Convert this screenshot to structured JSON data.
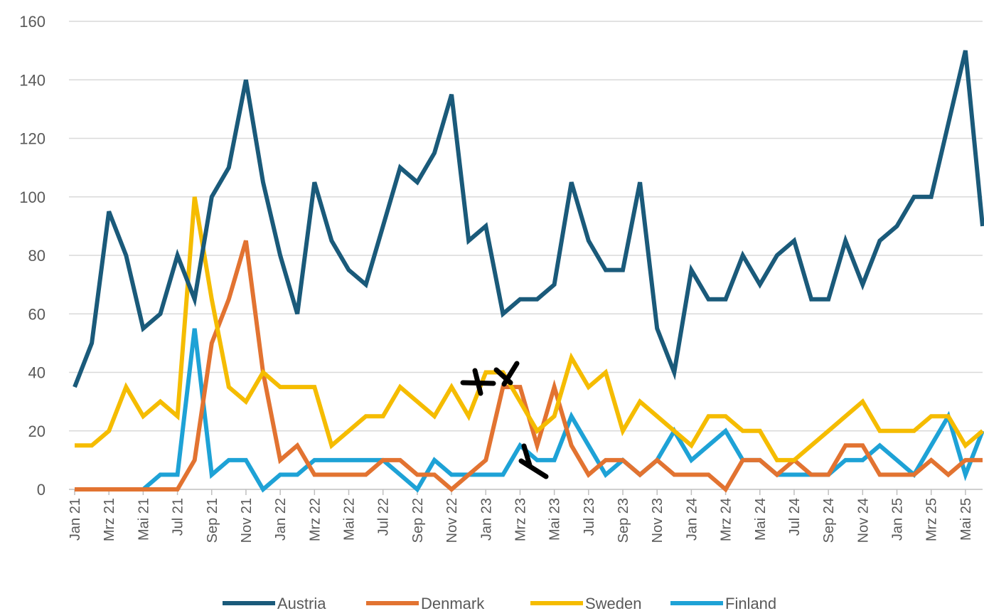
{
  "chart_data": {
    "type": "line",
    "title": "",
    "xlabel": "",
    "ylabel": "",
    "ylim": [
      0,
      160
    ],
    "yticks": [
      0,
      20,
      40,
      60,
      80,
      100,
      120,
      140,
      160
    ],
    "grid": true,
    "legend": "bottom",
    "x": [
      "Jan 21",
      "Feb 21",
      "Mrz 21",
      "Apr 21",
      "Mai 21",
      "Jun 21",
      "Jul 21",
      "Aug 21",
      "Sep 21",
      "Okt 21",
      "Nov 21",
      "Dez 21",
      "Jan 22",
      "Feb 22",
      "Mrz 22",
      "Apr 22",
      "Mai 22",
      "Jun 22",
      "Jul 22",
      "Aug 22",
      "Sep 22",
      "Okt 22",
      "Nov 22",
      "Dez 22",
      "Jan 23",
      "Feb 23",
      "Mrz 23",
      "Apr 23",
      "Mai 23",
      "Jun 23",
      "Jul 23",
      "Aug 23",
      "Sep 23",
      "Okt 23",
      "Nov 23",
      "Dez 23",
      "Jan 24",
      "Feb 24",
      "Mrz 24",
      "Apr 24",
      "Mai 24",
      "Jun 24",
      "Jul 24",
      "Aug 24",
      "Sep 24",
      "Okt 24",
      "Nov 24",
      "Dez 24",
      "Jan 25",
      "Feb 25",
      "Mrz 25",
      "Apr 25",
      "Mai 25",
      "Jun 25"
    ],
    "x_tick_labels": [
      "Jan 21",
      "Mrz 21",
      "Mai 21",
      "Jul 21",
      "Sep 21",
      "Nov 21",
      "Jan 22",
      "Mrz 22",
      "Mai 22",
      "Jul 22",
      "Sep 22",
      "Nov 22",
      "Jan 23",
      "Mrz 23",
      "Mai 23",
      "Jul 23",
      "Sep 23",
      "Nov 23",
      "Jan 24",
      "Mrz 24",
      "Mai 24",
      "Jul 24",
      "Sep 24",
      "Nov 24",
      "Jan 25",
      "Mrz 25",
      "Mai 25"
    ],
    "series": [
      {
        "name": "Austria",
        "color": "#1a5a7a",
        "values": [
          35,
          50,
          95,
          80,
          55,
          60,
          80,
          65,
          100,
          110,
          140,
          105,
          80,
          60,
          105,
          85,
          75,
          70,
          90,
          110,
          105,
          115,
          135,
          85,
          90,
          60,
          65,
          65,
          70,
          105,
          85,
          75,
          75,
          105,
          55,
          40,
          75,
          65,
          65,
          80,
          70,
          80,
          85,
          65,
          65,
          85,
          70,
          85,
          90,
          100,
          100,
          125,
          150,
          90
        ]
      },
      {
        "name": "Denmark",
        "color": "#e27331",
        "values": [
          0,
          0,
          0,
          0,
          0,
          0,
          0,
          10,
          50,
          65,
          85,
          40,
          10,
          15,
          5,
          5,
          5,
          5,
          10,
          10,
          5,
          5,
          0,
          5,
          10,
          35,
          35,
          15,
          35,
          15,
          5,
          10,
          10,
          5,
          10,
          5,
          5,
          5,
          0,
          10,
          10,
          5,
          10,
          5,
          5,
          15,
          15,
          5,
          5,
          5,
          10,
          5,
          10,
          10
        ]
      },
      {
        "name": "Sweden",
        "color": "#f5bc00",
        "values": [
          15,
          15,
          20,
          35,
          25,
          30,
          25,
          100,
          65,
          35,
          30,
          40,
          35,
          35,
          35,
          15,
          20,
          25,
          25,
          35,
          30,
          25,
          35,
          25,
          40,
          40,
          30,
          20,
          25,
          45,
          35,
          40,
          20,
          30,
          25,
          20,
          15,
          25,
          25,
          20,
          20,
          10,
          10,
          15,
          20,
          25,
          30,
          20,
          20,
          20,
          25,
          25,
          15,
          20
        ]
      },
      {
        "name": "Finland",
        "color": "#1ea2d6",
        "values": [
          0,
          0,
          0,
          0,
          0,
          5,
          5,
          55,
          5,
          10,
          10,
          0,
          5,
          5,
          10,
          10,
          10,
          10,
          10,
          5,
          0,
          10,
          5,
          5,
          5,
          5,
          15,
          10,
          10,
          25,
          15,
          5,
          10,
          5,
          10,
          20,
          10,
          15,
          20,
          10,
          10,
          5,
          5,
          5,
          5,
          10,
          10,
          15,
          10,
          5,
          15,
          25,
          5,
          20
        ]
      }
    ]
  }
}
